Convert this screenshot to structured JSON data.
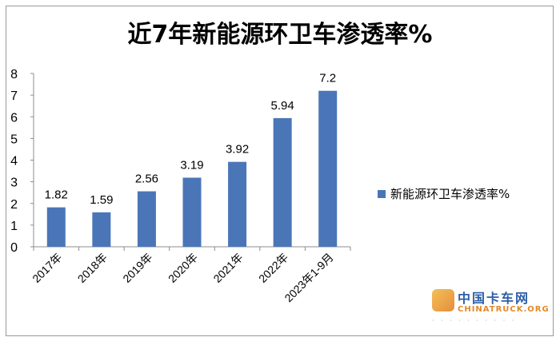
{
  "chart_data": {
    "type": "bar",
    "title": "近7年新能源环卫车渗透率%",
    "categories": [
      "2017年",
      "2018年",
      "2019年",
      "2020年",
      "2021年",
      "2022年",
      "2023年1-9月"
    ],
    "series": [
      {
        "name": "新能源环卫车渗透率%",
        "values": [
          1.82,
          1.59,
          2.56,
          3.19,
          3.92,
          5.94,
          7.2
        ]
      }
    ],
    "data_labels": [
      "1.82",
      "1.59",
      "2.56",
      "3.19",
      "3.92",
      "5.94",
      "7.2"
    ],
    "ylim": [
      0,
      8
    ],
    "yticks": [
      0,
      1,
      2,
      3,
      4,
      5,
      6,
      7,
      8
    ],
    "grid": false,
    "legend": "right",
    "color": "#4a76b8"
  },
  "watermark": {
    "name": "中国卡车网",
    "latin": "CHINATRUCK.ORG"
  }
}
